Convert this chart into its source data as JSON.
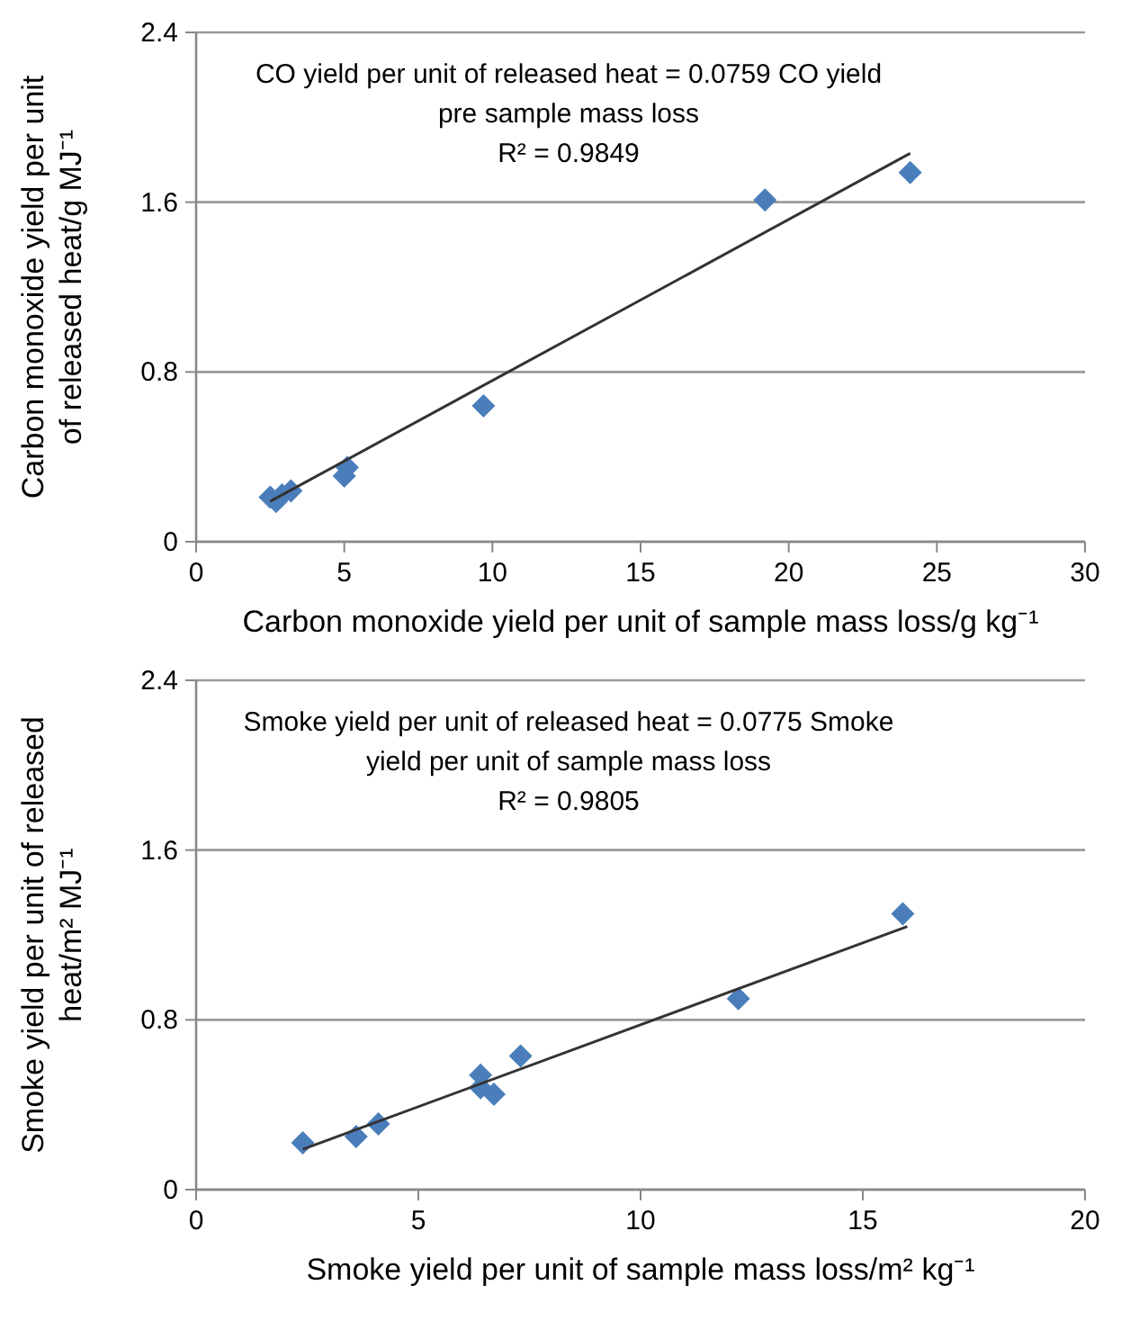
{
  "chart_data": [
    {
      "type": "scatter",
      "xlabel": "Carbon monoxide yield per unit of sample mass loss/g kg⁻¹",
      "ylabel": "Carbon monoxide yield per unit of released heat/g MJ⁻¹",
      "annotations": [
        "CO yield per unit of released heat = 0.0759 CO yield pre sample mass loss",
        "R² = 0.9849"
      ],
      "xlim": [
        0,
        30
      ],
      "xticks": [
        0,
        5,
        10,
        15,
        20,
        25,
        30
      ],
      "ylim": [
        0,
        2.4
      ],
      "yticks": [
        0,
        0.8,
        1.6,
        2.4
      ],
      "grid": "y",
      "series": [
        {
          "marker": "diamond",
          "color": "#4a7ebb",
          "x": [
            2.5,
            2.7,
            2.9,
            3.2,
            5.0,
            5.1,
            9.7,
            19.2,
            24.1
          ],
          "values": [
            0.21,
            0.19,
            0.22,
            0.24,
            0.31,
            0.35,
            0.64,
            1.61,
            1.74
          ]
        },
        {
          "type": "line",
          "color": "#333333",
          "x": [
            2.5,
            24.1
          ],
          "values": [
            0.19,
            1.83
          ]
        }
      ]
    },
    {
      "type": "scatter",
      "xlabel": "Smoke yield per unit of sample mass loss/m² kg⁻¹",
      "ylabel": "Smoke yield per unit of released heat/m² MJ⁻¹",
      "annotations": [
        "Smoke yield per unit of released heat = 0.0775 Smoke yield per unit of sample mass loss",
        "R² = 0.9805"
      ],
      "xlim": [
        0,
        20
      ],
      "xticks": [
        0,
        5,
        10,
        15,
        20
      ],
      "ylim": [
        0,
        2.4
      ],
      "yticks": [
        0,
        0.8,
        1.6,
        2.4
      ],
      "grid": "y",
      "series": [
        {
          "marker": "diamond",
          "color": "#4a7ebb",
          "x": [
            2.4,
            3.6,
            4.1,
            6.4,
            6.4,
            6.7,
            7.3,
            12.2,
            15.9
          ],
          "values": [
            0.22,
            0.25,
            0.31,
            0.54,
            0.48,
            0.45,
            0.63,
            0.9,
            1.3
          ]
        },
        {
          "type": "line",
          "color": "#333333",
          "x": [
            2.4,
            16.0
          ],
          "values": [
            0.19,
            1.24
          ]
        }
      ]
    }
  ]
}
